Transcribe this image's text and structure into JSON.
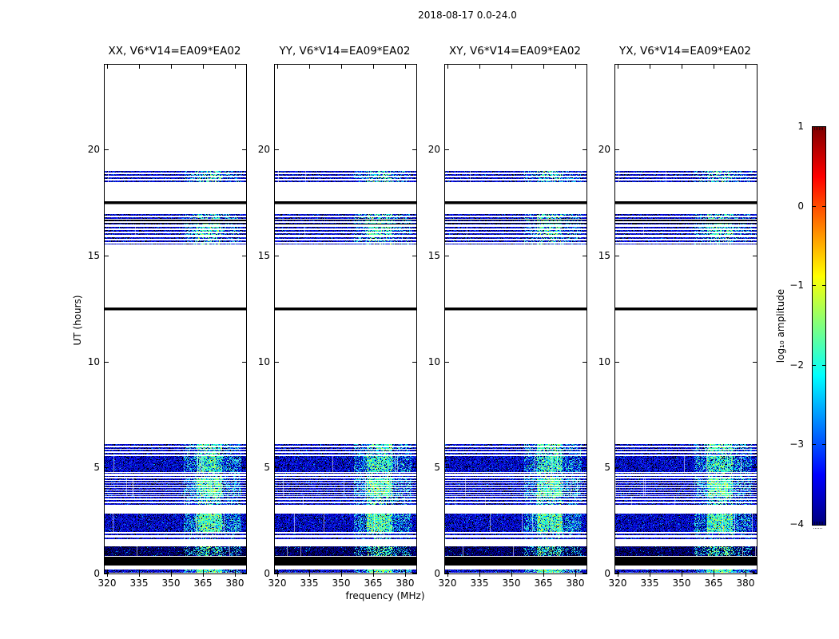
{
  "figure": {
    "title": "2018-08-17 0.0-24.0"
  },
  "chart_data": {
    "type": "heatmap",
    "title": "2018-08-17 0.0-24.0",
    "xlabel": "frequency (MHz)",
    "ylabel": "UT (hours)",
    "panels": [
      {
        "title": "XX, V6*V14=EA09*EA02"
      },
      {
        "title": "YY, V6*V14=EA09*EA02"
      },
      {
        "title": "XY, V6*V14=EA09*EA02"
      },
      {
        "title": "YX, V6*V14=EA09*EA02"
      }
    ],
    "x_ticks": [
      320,
      335,
      350,
      365,
      380
    ],
    "x_range": [
      318.9,
      385.3
    ],
    "y_ticks": [
      0,
      5,
      10,
      15,
      20
    ],
    "y_range": [
      0,
      24
    ],
    "colorbar": {
      "label": "log₁₀ amplitude",
      "tick_labels": [
        "1",
        "0",
        "−1",
        "−2",
        "−3",
        "−4"
      ],
      "tick_values": [
        1,
        0,
        -1,
        -2,
        -3,
        -4
      ],
      "range": [
        -4,
        1
      ],
      "colormap": "jet"
    },
    "bright_band_mhz": [
      356,
      383
    ],
    "bright_core_mhz": [
      362,
      374
    ],
    "bands": [
      {
        "ut": [
          18.39,
          18.99
        ],
        "type": "stripes",
        "bright": 0.55
      },
      {
        "ut": [
          17.4,
          17.55
        ],
        "type": "double_line"
      },
      {
        "ut": [
          16.72,
          16.96
        ],
        "type": "stripes",
        "bright": 0.6
      },
      {
        "ut": [
          16.44,
          16.7
        ],
        "type": "stripes",
        "bright": 0.8,
        "blackmix": 0.6
      },
      {
        "ut": [
          15.92,
          16.36
        ],
        "type": "stripes",
        "bright": 0.75
      },
      {
        "ut": [
          15.54,
          15.86
        ],
        "type": "stripes",
        "bright": 0.4
      },
      {
        "ut": [
          12.41,
          12.56
        ],
        "type": "double_line"
      },
      {
        "ut": [
          5.84,
          6.11
        ],
        "type": "stripes",
        "bright": 0.85
      },
      {
        "ut": [
          5.56,
          5.84
        ],
        "type": "stripes",
        "bright": 0.6
      },
      {
        "ut": [
          4.78,
          5.55
        ],
        "type": "dense",
        "bright": 0.8
      },
      {
        "ut": [
          4.52,
          4.76
        ],
        "type": "stripes",
        "sparse": true,
        "bright": 0.35
      },
      {
        "ut": [
          3.65,
          4.48
        ],
        "type": "stripes",
        "dense_stripes": true,
        "bright": 0.95
      },
      {
        "ut": [
          3.15,
          3.62
        ],
        "type": "stripes",
        "bright": 0.55
      },
      {
        "ut": [
          1.96,
          2.84
        ],
        "type": "dense",
        "bright": 0.9
      },
      {
        "ut": [
          1.79,
          1.88
        ],
        "type": "stripes",
        "bright": 0.35
      },
      {
        "ut": [
          1.59,
          1.68
        ],
        "type": "stripes",
        "bright": 0.35
      },
      {
        "ut": [
          0.83,
          1.29
        ],
        "type": "dense",
        "bright": 0.55,
        "dark": true
      },
      {
        "ut": [
          0.37,
          0.79
        ],
        "type": "black"
      },
      {
        "ut": [
          0.04,
          0.19
        ],
        "type": "dense",
        "bright": 0.95
      }
    ]
  }
}
